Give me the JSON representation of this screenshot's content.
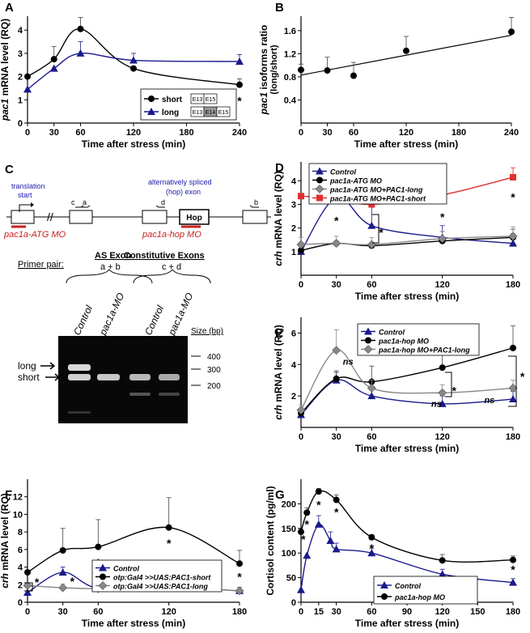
{
  "panels": {
    "A": {
      "letter": "A",
      "ylabel_italic": "pac1",
      "ylabel_rest": " mRNA level (RQ)",
      "xlabel": "Time after stress (min)"
    },
    "B": {
      "letter": "B",
      "ylabel_line1_italic": "pac1",
      "ylabel_line1_rest": " isoforms ratio",
      "ylabel_line2": "(long/short)",
      "xlabel": "Time after stress (min)"
    },
    "C": {
      "letter": "C"
    },
    "D": {
      "letter": "D",
      "ylabel_italic": "crh",
      "ylabel_rest": " mRNA level (RQ)",
      "xlabel": "Time after stress (min)"
    },
    "E": {
      "letter": "E",
      "ylabel_italic": "crh",
      "ylabel_rest": " mRNA level (RQ)",
      "xlabel": "Time after stress (min)"
    },
    "F": {
      "letter": "F",
      "ylabel_italic": "crh",
      "ylabel_rest": " mRNA level (RQ)",
      "xlabel": "Time after stress (min)"
    },
    "G": {
      "letter": "G",
      "ylabel": "Cortisol content (pg/ml)",
      "xlabel": "Time after stress (min)"
    }
  },
  "chart_data": [
    {
      "panel": "A",
      "type": "line",
      "xlim": [
        0,
        240
      ],
      "ylim": [
        0,
        4.6
      ],
      "xticks": [
        0,
        30,
        60,
        120,
        180,
        240
      ],
      "yticks": [
        0,
        1,
        2,
        3,
        4
      ],
      "legend_position": "bottom-right",
      "series": [
        {
          "name": "short",
          "color": "#000000",
          "marker": "circle",
          "legend_exons": [
            "E13",
            "E15"
          ],
          "x": [
            0,
            30,
            60,
            120,
            240
          ],
          "y": [
            2.0,
            2.75,
            4.05,
            2.35,
            1.65
          ],
          "err": [
            0,
            0.55,
            0.5,
            0,
            0.25
          ]
        },
        {
          "name": "long",
          "color": "#1a1a8c",
          "marker": "triangle",
          "legend_exons": [
            "E13",
            "E14",
            "E15"
          ],
          "x": [
            0,
            30,
            60,
            120,
            240
          ],
          "y": [
            1.45,
            2.35,
            3.0,
            2.7,
            2.65
          ],
          "err": [
            0,
            0,
            0.5,
            0.3,
            0.3
          ]
        }
      ],
      "stars": [
        {
          "x": 240,
          "y": 1.0,
          "text": "*"
        }
      ]
    },
    {
      "panel": "B",
      "type": "scatter",
      "xlim": [
        0,
        240
      ],
      "ylim": [
        0,
        1.85
      ],
      "xticks": [
        0,
        30,
        60,
        120,
        180,
        240
      ],
      "yticks": [
        0.4,
        0.8,
        1.2,
        1.6
      ],
      "trendline": [
        [
          0,
          0.83
        ],
        [
          240,
          1.52
        ]
      ],
      "series": [
        {
          "name": "",
          "color": "#000000",
          "marker": "circle",
          "x": [
            0,
            30,
            60,
            120,
            240
          ],
          "y": [
            0.92,
            0.91,
            0.82,
            1.25,
            1.58
          ],
          "err": [
            0.1,
            0.23,
            0.23,
            0.25,
            0.25
          ]
        }
      ]
    },
    {
      "panel": "D",
      "type": "line",
      "xlim": [
        0,
        180
      ],
      "ylim": [
        0,
        4.8
      ],
      "xticks": [
        0,
        30,
        60,
        120,
        180
      ],
      "yticks": [
        1,
        2,
        3,
        4
      ],
      "legend_position": "top-left",
      "series": [
        {
          "name": "Control",
          "color": "#1a1a8c",
          "marker": "triangle",
          "x": [
            0,
            30,
            60,
            120,
            180
          ],
          "y": [
            1.0,
            3.3,
            2.1,
            1.6,
            1.35
          ],
          "err": [
            0,
            0.5,
            0.8,
            0.5,
            0.4
          ]
        },
        {
          "name": "pac1a-ATG MO",
          "color": "#000000",
          "marker": "circle",
          "x": [
            0,
            30,
            60,
            120,
            180
          ],
          "y": [
            1.05,
            1.35,
            1.25,
            1.45,
            1.6
          ],
          "err": [
            0,
            0,
            0,
            0.4,
            0.35
          ]
        },
        {
          "name": "pac1a-ATG MO+PAC1-long",
          "color": "#888888",
          "marker": "diamond",
          "x": [
            0,
            30,
            60,
            120,
            180
          ],
          "y": [
            1.3,
            1.35,
            1.3,
            1.55,
            1.65
          ],
          "err": [
            0.3,
            0.3,
            0.3,
            0.3,
            0.4
          ]
        },
        {
          "name": "pac1a-ATG MO+PAC1-short",
          "color": "#e03030",
          "marker": "square",
          "x": [
            0,
            30,
            60,
            120,
            180
          ],
          "y": [
            3.35,
            3.25,
            3.0,
            3.4,
            4.15
          ],
          "err": [
            0,
            0.9,
            0.9,
            0.9,
            0.4
          ]
        }
      ],
      "stars": [
        {
          "x": 30,
          "y": 2.35,
          "text": "*"
        },
        {
          "x": 120,
          "y": 2.5,
          "text": "*"
        },
        {
          "x": 180,
          "y": 3.35,
          "text": "*"
        },
        {
          "x": 68,
          "y": 1.85,
          "text": "*"
        }
      ]
    },
    {
      "panel": "E",
      "type": "line",
      "xlim": [
        0,
        180
      ],
      "ylim": [
        0,
        7.0
      ],
      "xticks": [
        0,
        30,
        60,
        120,
        180
      ],
      "yticks": [
        2,
        4,
        6
      ],
      "legend_position": "top-center",
      "series": [
        {
          "name": "Control",
          "color": "#1a1a8c",
          "marker": "triangle",
          "x": [
            0,
            30,
            60,
            120,
            180
          ],
          "y": [
            0.8,
            3.0,
            2.0,
            1.5,
            1.8
          ],
          "err": [
            0,
            0.5,
            0.5,
            0.5,
            0.5
          ]
        },
        {
          "name": "pac1a-hop MO",
          "color": "#000000",
          "marker": "circle",
          "x": [
            0,
            30,
            60,
            120,
            180
          ],
          "y": [
            0.9,
            3.1,
            2.9,
            3.8,
            5.05
          ],
          "err": [
            0,
            0.5,
            1.0,
            1.5,
            1.4
          ]
        },
        {
          "name": "pac1a-hop MO+PAC1-long",
          "color": "#888888",
          "marker": "diamond",
          "x": [
            0,
            30,
            60,
            120,
            180
          ],
          "y": [
            1.1,
            4.9,
            2.5,
            2.2,
            2.5
          ],
          "err": [
            0.3,
            1.3,
            0.5,
            0.5,
            0.5
          ]
        }
      ],
      "annotations": [
        {
          "x": 40,
          "y": 4.0,
          "text": "ns"
        },
        {
          "x": 115,
          "y": 1.3,
          "text": "ns"
        },
        {
          "x": 160,
          "y": 1.55,
          "text": "ns"
        }
      ],
      "stars": [
        {
          "x": 130,
          "y": 2.4,
          "text": "*"
        },
        {
          "x": 188,
          "y": 3.3,
          "text": "*"
        }
      ]
    },
    {
      "panel": "F",
      "type": "line",
      "xlim": [
        0,
        180
      ],
      "ylim": [
        0,
        14
      ],
      "xticks": [
        0,
        30,
        60,
        120,
        180
      ],
      "yticks": [
        0,
        2,
        4,
        6,
        8,
        10,
        12
      ],
      "legend_position": "bottom-center",
      "series": [
        {
          "name": "Control",
          "color": "#1a1a8c",
          "marker": "triangle",
          "x": [
            0,
            30,
            60,
            120,
            180
          ],
          "y": [
            1.1,
            3.4,
            1.6,
            1.7,
            1.3
          ],
          "err": [
            0,
            0.6,
            0.4,
            0.4,
            0.4
          ]
        },
        {
          "name": "otp:Gal4 >>UAS:PAC1-short",
          "color": "#000000",
          "marker": "circle",
          "x": [
            0,
            30,
            60,
            120,
            180
          ],
          "y": [
            3.4,
            5.9,
            6.3,
            8.5,
            4.4
          ],
          "err": [
            0,
            2.5,
            3.1,
            3.4,
            1.5
          ]
        },
        {
          "name": "otp:Gal4 >>UAS:PAC1-long",
          "color": "#888888",
          "marker": "diamond",
          "x": [
            0,
            30,
            60,
            120,
            180
          ],
          "y": [
            1.9,
            1.65,
            1.55,
            1.7,
            1.3
          ],
          "err": [
            0,
            0.4,
            0.4,
            0.4,
            0.4
          ]
        }
      ],
      "stars": [
        {
          "x": 8,
          "y": 2.4,
          "text": "*"
        },
        {
          "x": 38,
          "y": 2.5,
          "text": "*"
        },
        {
          "x": 60,
          "y": 4.6,
          "text": "*"
        },
        {
          "x": 120,
          "y": 6.8,
          "text": "*"
        },
        {
          "x": 180,
          "y": 3.0,
          "text": "*"
        }
      ]
    },
    {
      "panel": "G",
      "type": "line",
      "xlim": [
        0,
        180
      ],
      "ylim": [
        0,
        250
      ],
      "xticks": [
        0,
        15,
        30,
        60,
        90,
        120,
        150,
        180
      ],
      "yticks": [
        0,
        50,
        100,
        150,
        200
      ],
      "legend_position": "bottom-center",
      "series": [
        {
          "name": "Control",
          "color": "#1a1a8c",
          "marker": "triangle",
          "x": [
            0,
            5,
            15,
            25,
            30,
            60,
            120,
            180
          ],
          "y": [
            25,
            95,
            158,
            125,
            108,
            100,
            57,
            40
          ],
          "err": [
            0,
            0,
            18,
            18,
            12,
            10,
            10,
            8
          ]
        },
        {
          "name": "pac1a-hop MO",
          "color": "#000000",
          "marker": "circle",
          "x": [
            0,
            5,
            15,
            30,
            60,
            120,
            180
          ],
          "y": [
            143,
            182,
            225,
            208,
            132,
            85,
            86
          ],
          "err": [
            0,
            10,
            6,
            10,
            5,
            12,
            8
          ]
        }
      ],
      "stars": [
        {
          "x": 2,
          "y": 130,
          "text": "*"
        },
        {
          "x": 5,
          "y": 160,
          "text": "*"
        },
        {
          "x": 15,
          "y": 200,
          "text": "*"
        },
        {
          "x": 30,
          "y": 185,
          "text": "*"
        },
        {
          "x": 60,
          "y": 112,
          "text": "*"
        },
        {
          "x": 180,
          "y": 68,
          "text": "*"
        }
      ]
    }
  ],
  "diagram_C": {
    "translation_start_line1": "translation",
    "translation_start_line2": "start",
    "hop_exon_line1": "alternatively spliced",
    "hop_exon_line2": "(hop) exon",
    "hop_label": "Hop",
    "primer_labels": [
      "c",
      "a",
      "d",
      "b"
    ],
    "atg_mo_label": "pac1a-ATG MO",
    "hop_mo_label": "pac1a-hop MO",
    "primer_pair_label": "Primer pair:",
    "as_exon_title": "AS Exon",
    "as_exon_pair": "a + b",
    "const_title": "Constitutive Exons",
    "const_pair": "c + d",
    "lane_labels": [
      "Control",
      "pac1a-MO",
      "Control",
      "pac1a-MO"
    ],
    "size_title": "Size (bp)",
    "size_marks": [
      "400",
      "300",
      "200"
    ],
    "band_long": "long",
    "band_short": "short",
    "colors": {
      "blue_text": "#1a1aa8",
      "red_mo": "#c82020"
    }
  }
}
